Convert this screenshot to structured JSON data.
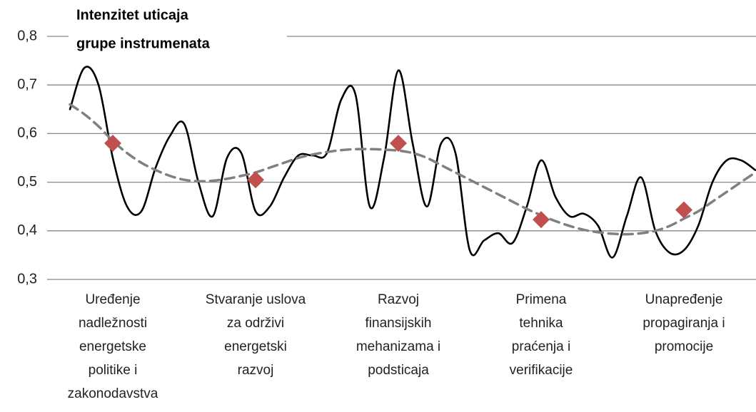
{
  "chart_data": {
    "type": "line",
    "title": [
      "Intenzitet uticaja",
      "grupe instrumenata"
    ],
    "categories": [
      null,
      null,
      null,
      null,
      null,
      [
        "Uređenje",
        "nadležnosti",
        "energetske",
        "politike i",
        "zakonodavstva"
      ],
      null,
      null,
      null,
      null,
      null,
      null,
      null,
      null,
      null,
      [
        "Stvaranje uslova",
        "za održivi",
        "energetski",
        "razvoj"
      ],
      null,
      null,
      null,
      null,
      null,
      null,
      null,
      null,
      null,
      [
        "Razvoj",
        "finansijskih",
        "mehanizama i",
        "podsticaja"
      ],
      null,
      null,
      null,
      null,
      null,
      null,
      null,
      null,
      null,
      [
        "Primena",
        "tehnika",
        "praćenja i",
        "verifikacije"
      ],
      null,
      null,
      null,
      null,
      null,
      null,
      null,
      null,
      null,
      [
        "Unapređenje",
        "propagiranja i",
        "promocije"
      ],
      null,
      null,
      null,
      null,
      null
    ],
    "series": [
      {
        "color": "#000000",
        "style": "smooth",
        "values": [
          null,
          null,
          0.65,
          0.735,
          0.7,
          0.55,
          0.45,
          0.44,
          0.53,
          0.595,
          0.62,
          0.5,
          0.43,
          0.55,
          0.56,
          0.44,
          0.45,
          0.51,
          0.555,
          0.555,
          0.56,
          0.67,
          0.68,
          0.45,
          0.55,
          0.73,
          0.58,
          0.45,
          0.58,
          0.56,
          0.36,
          0.38,
          0.395,
          0.375,
          0.45,
          0.545,
          0.47,
          0.43,
          0.435,
          0.41,
          0.345,
          0.43,
          0.51,
          0.4,
          0.355,
          0.36,
          0.41,
          0.5,
          0.545,
          0.545,
          0.525
        ]
      },
      {
        "color": "#808080",
        "style": "dashed",
        "values": [
          null,
          null,
          0.66,
          0.64,
          0.615,
          0.585,
          0.56,
          0.54,
          0.525,
          0.513,
          0.505,
          0.502,
          0.503,
          0.507,
          0.513,
          0.52,
          0.53,
          0.54,
          0.55,
          0.557,
          0.562,
          0.566,
          0.568,
          0.568,
          0.567,
          0.565,
          0.56,
          0.55,
          0.535,
          0.52,
          0.505,
          0.49,
          0.475,
          0.46,
          0.445,
          0.432,
          0.42,
          0.41,
          0.402,
          0.397,
          0.394,
          0.393,
          0.395,
          0.4,
          0.41,
          0.425,
          0.44,
          0.46,
          0.48,
          0.5,
          0.52
        ]
      },
      {
        "color": "#c0504d",
        "style": "diamond",
        "values": [
          null,
          null,
          null,
          null,
          null,
          0.58,
          null,
          null,
          null,
          null,
          null,
          null,
          null,
          null,
          null,
          0.505,
          null,
          null,
          null,
          null,
          null,
          null,
          null,
          null,
          null,
          0.58,
          null,
          null,
          null,
          null,
          null,
          null,
          null,
          null,
          null,
          0.423,
          null,
          null,
          null,
          null,
          null,
          null,
          null,
          null,
          null,
          0.443,
          null,
          null,
          null,
          null,
          null
        ]
      }
    ],
    "ylim": [
      0.3,
      0.8
    ],
    "yticks": [
      {
        "value": 0.3,
        "label": "0,3"
      },
      {
        "value": 0.4,
        "label": "0,4"
      },
      {
        "value": 0.5,
        "label": "0,5"
      },
      {
        "value": 0.6,
        "label": "0,6"
      },
      {
        "value": 0.7,
        "label": "0,7"
      },
      {
        "value": 0.8,
        "label": "0,8"
      }
    ],
    "grid": true
  }
}
